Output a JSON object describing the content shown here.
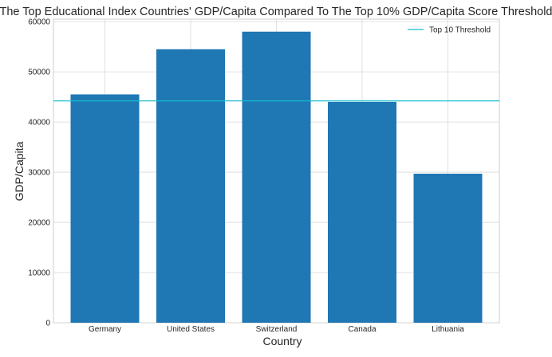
{
  "chart_data": {
    "type": "bar",
    "title": "The Top Educational Index Countries' GDP/Capita Compared To The Top 10% GDP/Capita Score Threshold",
    "xlabel": "Country",
    "ylabel": "GDP/Capita",
    "categories": [
      "Germany",
      "United States",
      "Switzerland",
      "Canada",
      "Lithuania"
    ],
    "values": [
      45500,
      54500,
      58000,
      44000,
      29700
    ],
    "ylim": [
      0,
      60500
    ],
    "yticks": [
      0,
      10000,
      20000,
      30000,
      40000,
      50000,
      60000
    ],
    "bar_color": "#1f77b4",
    "threshold": {
      "name": "Top 10 Threshold",
      "value": 44200,
      "color": "#17becf"
    },
    "grid": true,
    "legend_position": "top-right"
  }
}
